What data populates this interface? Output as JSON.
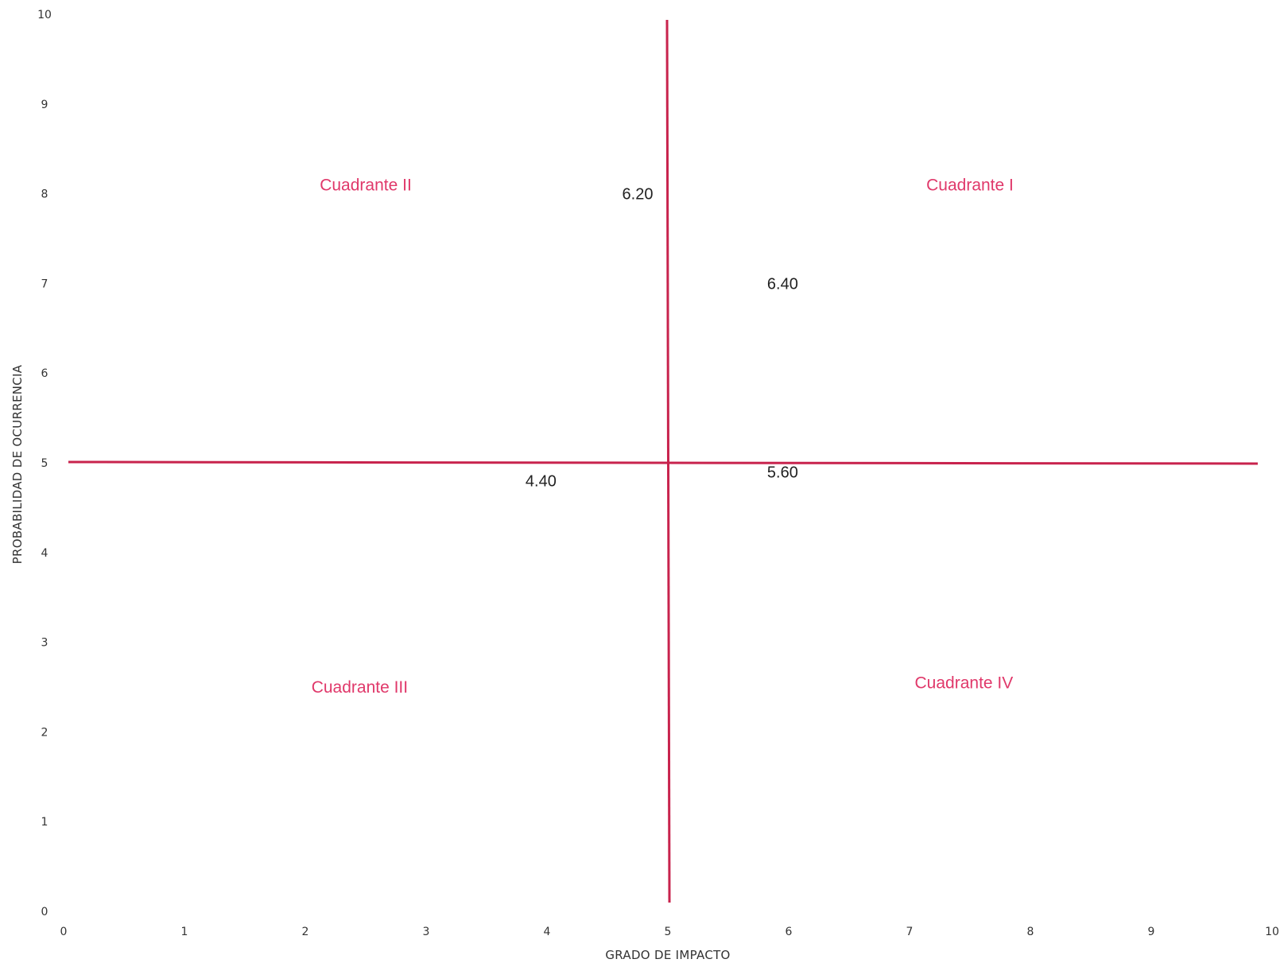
{
  "chart_data": {
    "type": "scatter",
    "title": "",
    "xlabel": "GRADO DE IMPACTO",
    "ylabel": "PROBABILIDAD DE OCURRENCIA",
    "xlim": [
      0,
      10
    ],
    "ylim": [
      0,
      10
    ],
    "x_ticks": [
      "0",
      "1",
      "2",
      "3",
      "4",
      "5",
      "6",
      "7",
      "8",
      "9",
      "10"
    ],
    "y_ticks": [
      "0",
      "1",
      "2",
      "3",
      "4",
      "5",
      "6",
      "7",
      "8",
      "9",
      "10"
    ],
    "grid": false,
    "dividers": {
      "x": 5,
      "y": 5,
      "color": "#c8234d"
    },
    "quadrants": [
      {
        "label": "Cuadrante I",
        "x": 7.5,
        "y": 8.1
      },
      {
        "label": "Cuadrante II",
        "x": 2.5,
        "y": 8.1
      },
      {
        "label": "Cuadrante III",
        "x": 2.45,
        "y": 2.5
      },
      {
        "label": "Cuadrante IV",
        "x": 7.45,
        "y": 2.55
      }
    ],
    "quadrant_color": "#e0386a",
    "value_labels": [
      {
        "text": "6.20",
        "x": 4.75,
        "y": 8.0
      },
      {
        "text": "6.40",
        "x": 5.95,
        "y": 7.0
      },
      {
        "text": "4.40",
        "x": 3.95,
        "y": 4.8
      },
      {
        "text": "5.60",
        "x": 5.95,
        "y": 4.9
      }
    ]
  }
}
